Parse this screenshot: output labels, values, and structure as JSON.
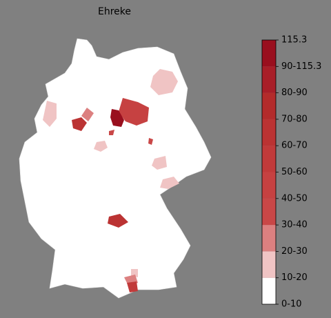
{
  "title": "Ehreke",
  "colorbar": {
    "labels": [
      "0-10",
      "10-20",
      "20-30",
      "30-40",
      "40-50",
      "50-60",
      "60-70",
      "70-80",
      "80-90",
      "90-115.3",
      "115.3"
    ],
    "colors": [
      "#ffffff",
      "#f0c4c4",
      "#dc8080",
      "#c94747",
      "#c64141",
      "#c13a3a",
      "#bb3333",
      "#b32b2b",
      "#a81e28",
      "#990f1e"
    ]
  }
}
